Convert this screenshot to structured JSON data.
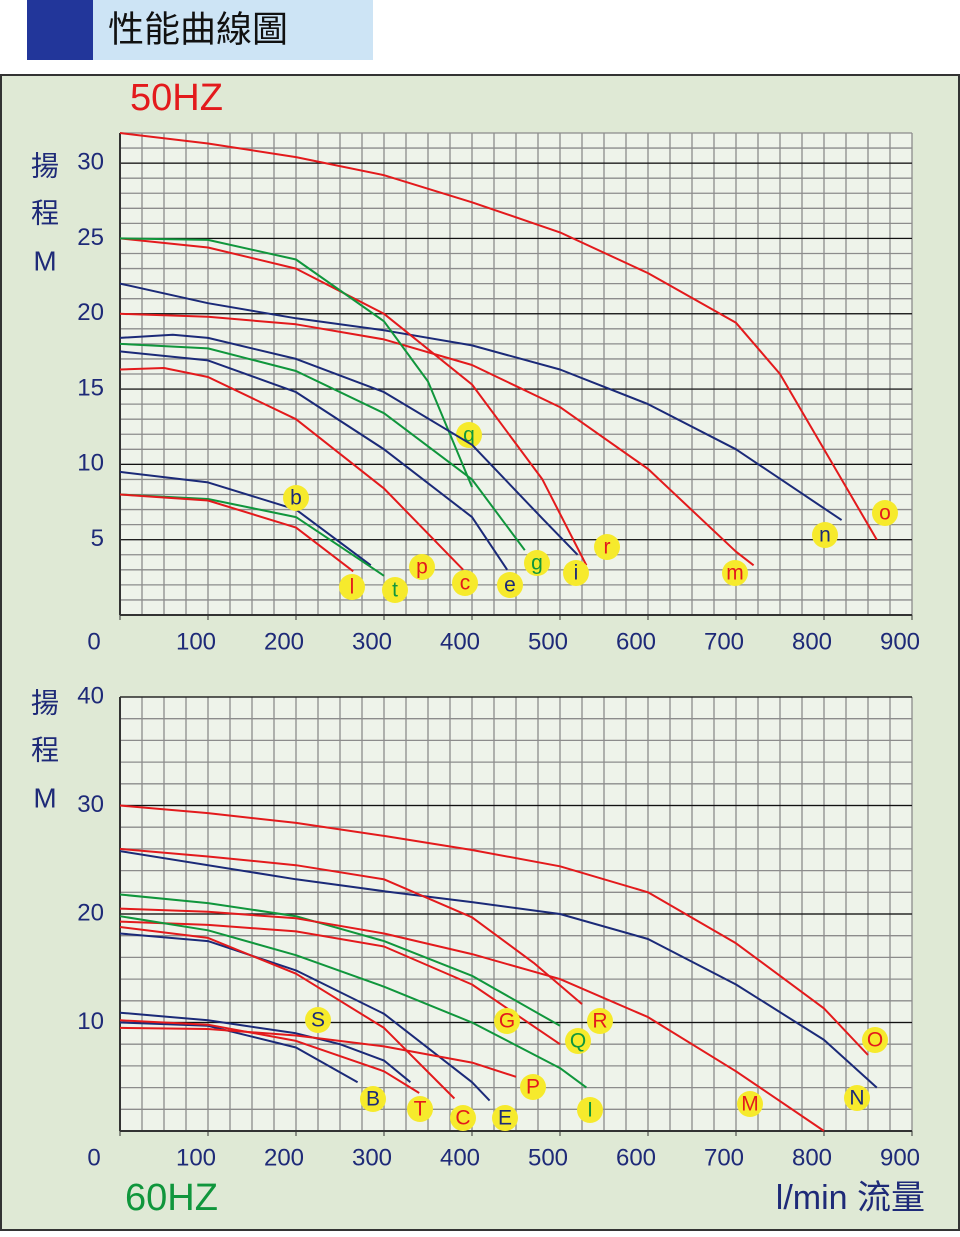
{
  "header": {
    "title": "性能曲線圖"
  },
  "chart_data": [
    {
      "type": "line",
      "title": "50HZ",
      "y_label": [
        "揚",
        "程",
        "M"
      ],
      "xlim": [
        0,
        900
      ],
      "xticks": [
        0,
        100,
        200,
        300,
        400,
        500,
        600,
        700,
        800,
        900
      ],
      "ylim": [
        0,
        32
      ],
      "yticks": [
        5,
        10,
        15,
        20,
        25,
        30
      ],
      "grid": true,
      "minor_grid": {
        "x": 25,
        "y": 1
      },
      "series": [
        {
          "name": "o",
          "color": "#e31a1c",
          "x": [
            0,
            100,
            200,
            300,
            400,
            500,
            600,
            700,
            750,
            800,
            860
          ],
          "values": [
            32,
            31.3,
            30.4,
            29.2,
            27.4,
            25.4,
            22.7,
            19.4,
            16,
            11,
            5
          ]
        },
        {
          "name": "n",
          "color": "#1b2a78",
          "x": [
            0,
            100,
            200,
            300,
            400,
            500,
            600,
            700,
            820
          ],
          "values": [
            22,
            20.7,
            19.7,
            18.9,
            17.9,
            16.3,
            14,
            11,
            6.3
          ]
        },
        {
          "name": "m",
          "color": "#e31a1c",
          "x": [
            0,
            100,
            200,
            300,
            400,
            500,
            600,
            700,
            720
          ],
          "values": [
            20,
            19.8,
            19.3,
            18.3,
            16.6,
            13.8,
            9.7,
            4.2,
            3.3
          ]
        },
        {
          "name": "r",
          "color": "#e31a1c",
          "x": [
            0,
            100,
            200,
            300,
            400,
            480,
            530
          ],
          "values": [
            25,
            24.4,
            23,
            20,
            15.3,
            9,
            3.3
          ]
        },
        {
          "name": "q",
          "color": "#10963c",
          "x": [
            0,
            100,
            200,
            300,
            350,
            400
          ],
          "values": [
            25,
            24.9,
            23.6,
            19.5,
            15.5,
            8.5
          ]
        },
        {
          "name": "i",
          "color": "#1b2a78",
          "x": [
            0,
            60,
            100,
            200,
            300,
            400,
            480,
            520
          ],
          "values": [
            18.4,
            18.6,
            18.4,
            17,
            14.8,
            11.3,
            6.4,
            4
          ]
        },
        {
          "name": "g",
          "color": "#10963c",
          "x": [
            0,
            100,
            200,
            300,
            400,
            460
          ],
          "values": [
            18,
            17.7,
            16.2,
            13.4,
            9,
            4.3
          ]
        },
        {
          "name": "e",
          "color": "#1b2a78",
          "x": [
            0,
            100,
            200,
            300,
            400,
            440
          ],
          "values": [
            17.5,
            16.9,
            14.8,
            11,
            6.5,
            3
          ]
        },
        {
          "name": "c",
          "color": "#e31a1c",
          "x": [
            0,
            50,
            100,
            200,
            300,
            390
          ],
          "values": [
            16.3,
            16.4,
            15.8,
            13,
            8.4,
            3
          ]
        },
        {
          "name": "b",
          "color": "#1b2a78",
          "x": [
            0,
            100,
            200,
            285
          ],
          "values": [
            9.5,
            8.8,
            7,
            3.3
          ]
        },
        {
          "name": "t",
          "color": "#10963c",
          "x": [
            0,
            100,
            200,
            300
          ],
          "values": [
            8,
            7.7,
            6.5,
            2.6
          ]
        },
        {
          "name": "l",
          "color": "#e31a1c",
          "x": [
            0,
            100,
            200,
            265
          ],
          "values": [
            8,
            7.6,
            5.8,
            2.9
          ]
        }
      ],
      "extra_labels": [
        {
          "text": "p",
          "color": "#e31a1c"
        }
      ]
    },
    {
      "type": "line",
      "title": "60HZ",
      "y_label": [
        "揚",
        "程",
        "M"
      ],
      "x_label": "l/min 流量",
      "xlim": [
        0,
        900
      ],
      "xticks": [
        0,
        100,
        200,
        300,
        400,
        500,
        600,
        700,
        800,
        900
      ],
      "ylim": [
        0,
        40
      ],
      "yticks": [
        10,
        20,
        30,
        40
      ],
      "grid": true,
      "minor_grid": {
        "x": 25,
        "y": 2
      },
      "series": [
        {
          "name": "O",
          "color": "#e31a1c",
          "x": [
            0,
            100,
            200,
            300,
            400,
            500,
            600,
            700,
            800,
            850
          ],
          "values": [
            30,
            29.3,
            28.4,
            27.2,
            25.9,
            24.4,
            22,
            17.3,
            11.3,
            7
          ]
        },
        {
          "name": "N",
          "color": "#1b2a78",
          "x": [
            0,
            200,
            300,
            400,
            500,
            600,
            700,
            800,
            860
          ],
          "values": [
            25.8,
            23.2,
            22.1,
            21.1,
            20,
            17.7,
            13.5,
            8.4,
            4
          ]
        },
        {
          "name": "R",
          "color": "#e31a1c",
          "x": [
            0,
            100,
            200,
            300,
            400,
            470,
            525
          ],
          "values": [
            26,
            25.3,
            24.5,
            23.2,
            19.7,
            15.5,
            11.7
          ]
        },
        {
          "name": "Q",
          "color": "#10963c",
          "x": [
            0,
            100,
            200,
            300,
            400,
            500
          ],
          "values": [
            21.8,
            21,
            19.8,
            17.5,
            14.3,
            9.7
          ]
        },
        {
          "name": "G",
          "color": "#e31a1c",
          "x": [
            0,
            100,
            200,
            300,
            400,
            500
          ],
          "values": [
            19.3,
            19,
            18.4,
            17,
            13.5,
            8
          ]
        },
        {
          "name": "M",
          "color": "#e31a1c",
          "x": [
            0,
            100,
            200,
            300,
            400,
            500,
            600,
            700,
            800
          ],
          "values": [
            20.5,
            20.2,
            19.6,
            18.2,
            16.3,
            14,
            10.5,
            5.5,
            0
          ]
        },
        {
          "name": "I",
          "color": "#10963c",
          "x": [
            0,
            100,
            200,
            300,
            400,
            500,
            530
          ],
          "values": [
            19.8,
            18.5,
            16.2,
            13.3,
            10,
            5.8,
            4
          ]
        },
        {
          "name": "E",
          "color": "#1b2a78",
          "x": [
            0,
            100,
            200,
            300,
            400,
            420
          ],
          "values": [
            18.2,
            17.5,
            14.8,
            10.8,
            4.5,
            2.8
          ]
        },
        {
          "name": "C",
          "color": "#e31a1c",
          "x": [
            0,
            100,
            200,
            300,
            380
          ],
          "values": [
            18.8,
            17.8,
            14.5,
            9.5,
            3
          ]
        },
        {
          "name": "S",
          "color": "#1b2a78",
          "x": [
            0,
            100,
            200,
            250,
            300,
            330
          ],
          "values": [
            10.9,
            10.2,
            9,
            8,
            6.5,
            4.5
          ]
        },
        {
          "name": "B",
          "color": "#1b2a78",
          "x": [
            0,
            100,
            200,
            270
          ],
          "values": [
            10,
            9.7,
            7.7,
            4.5
          ]
        },
        {
          "name": "T",
          "color": "#e31a1c",
          "x": [
            0,
            100,
            200,
            300,
            340
          ],
          "values": [
            10.2,
            9.8,
            8.3,
            5.5,
            3.5
          ]
        },
        {
          "name": "P",
          "color": "#e31a1c",
          "x": [
            0,
            100,
            200,
            300,
            400,
            450
          ],
          "values": [
            9.5,
            9.4,
            8.8,
            7.8,
            6.3,
            5
          ]
        }
      ]
    }
  ]
}
